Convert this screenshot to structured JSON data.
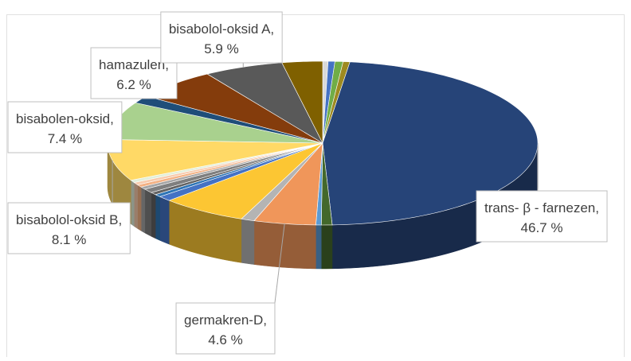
{
  "chart_data": {
    "type": "pie3d",
    "categories": [
      null,
      null,
      null,
      null,
      "trans- β - farnezen,",
      null,
      null,
      "germakren-D,",
      null,
      null,
      null,
      null,
      null,
      null,
      null,
      null,
      null,
      null,
      "bisabolol-oksid B,",
      "bisabolen-oksid,",
      null,
      "hamazulen,",
      "bisabolol-oksid A,",
      null
    ],
    "values": [
      0.4,
      0.5,
      0.6,
      0.5,
      46.7,
      0.8,
      0.4,
      4.6,
      1.0,
      6.4,
      1.0,
      0.5,
      0.5,
      0.8,
      0.5,
      0.5,
      0.5,
      0.5,
      8.1,
      7.4,
      1.5,
      6.2,
      5.9,
      3.0
    ],
    "value_labels": [
      null,
      null,
      null,
      null,
      "46.7 %",
      null,
      null,
      "4.6 %",
      null,
      null,
      null,
      null,
      null,
      null,
      null,
      null,
      null,
      null,
      "8.1 %",
      "7.4 %",
      null,
      "6.2 %",
      "5.9 %",
      null
    ],
    "colors": [
      "#d9d9d9",
      "#4472c4",
      "#70ad47",
      "#9e8a20",
      "#264478",
      "#43682b",
      "#5b9bd5",
      "#f0965a",
      "#b4b4b4",
      "#fcc633",
      "#4472c4",
      "#2e75b6",
      "#636363",
      "#7f7f7f",
      "#a5a5a5",
      "#f4b183",
      "#f8cbad",
      "#e2efda",
      "#ffd966",
      "#a9d18e",
      "#1f4e79",
      "#843c0c",
      "#595959",
      "#7f6000"
    ]
  }
}
